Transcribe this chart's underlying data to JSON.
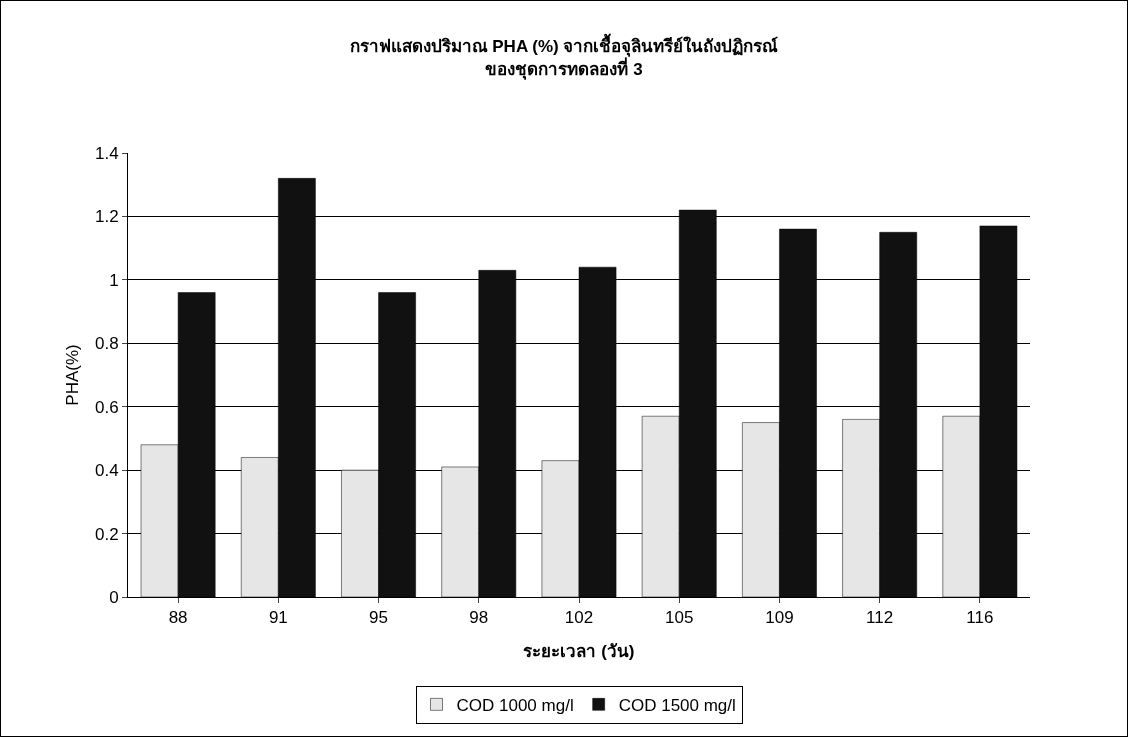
{
  "chart_data": {
    "type": "bar",
    "title": "กราฟแสดงปริมาณ PHA (%) จากเชื้อจุลินทรีย์ในถังปฏิกรณ์\nของชุดการทดลองที่ 3",
    "xlabel": "ระยะเวลา (วัน)",
    "ylabel": "PHA(%)",
    "categories": [
      "88",
      "91",
      "95",
      "98",
      "102",
      "105",
      "109",
      "112",
      "116"
    ],
    "series": [
      {
        "name": "COD 1000 mg/l",
        "color": "#e6e6e6",
        "values": [
          0.48,
          0.44,
          0.4,
          0.41,
          0.43,
          0.57,
          0.55,
          0.56,
          0.57
        ]
      },
      {
        "name": "COD 1500 mg/l",
        "color": "#111111",
        "values": [
          0.96,
          1.32,
          0.96,
          1.03,
          1.04,
          1.22,
          1.16,
          1.15,
          1.17
        ]
      }
    ],
    "ylim": [
      0,
      1.4
    ],
    "yticks": [
      0,
      0.2,
      0.4,
      0.6,
      0.8,
      1,
      1.2,
      1.4
    ],
    "grid": "y",
    "legend": "bottom"
  }
}
